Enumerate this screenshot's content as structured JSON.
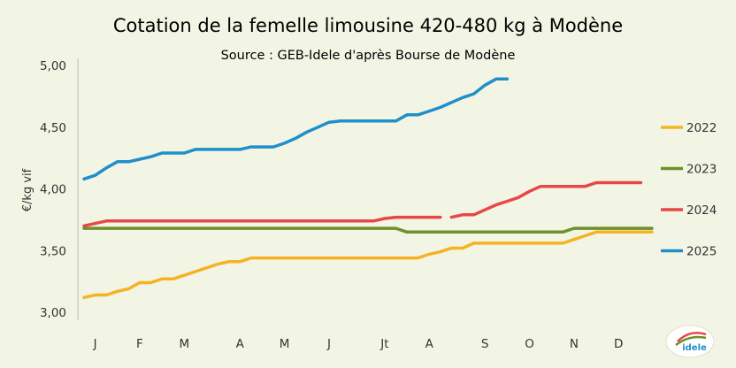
{
  "chart_data": {
    "type": "line",
    "title": "Cotation de la femelle limousine 420-480 kg à Modène",
    "subtitle": "Source : GEB-Idele d'après Bourse de Modène",
    "xlabel": "",
    "ylabel": "€/kg vif",
    "ylim": [
      3.0,
      5.0
    ],
    "yticks": [
      "3,00",
      "3,50",
      "4,00",
      "4,50",
      "5,00"
    ],
    "xlim": [
      1,
      52
    ],
    "month_labels": [
      "J",
      "F",
      "M",
      "A",
      "M",
      "J",
      "Jt",
      "A",
      "S",
      "O",
      "N",
      "D"
    ],
    "month_positions": [
      2,
      6,
      10,
      15,
      19,
      23,
      28,
      32,
      37,
      41,
      45,
      49
    ],
    "grid": false,
    "legend_position": "right",
    "series": [
      {
        "name": "2022",
        "color": "#f5b324",
        "points": [
          [
            1,
            3.12
          ],
          [
            2,
            3.14
          ],
          [
            3,
            3.14
          ],
          [
            4,
            3.17
          ],
          [
            5,
            3.19
          ],
          [
            6,
            3.24
          ],
          [
            7,
            3.24
          ],
          [
            8,
            3.27
          ],
          [
            9,
            3.27
          ],
          [
            10,
            3.3
          ],
          [
            11,
            3.33
          ],
          [
            12,
            3.36
          ],
          [
            13,
            3.39
          ],
          [
            14,
            3.41
          ],
          [
            15,
            3.41
          ],
          [
            16,
            3.44
          ],
          [
            17,
            3.44
          ],
          [
            18,
            3.44
          ],
          [
            19,
            3.44
          ],
          [
            20,
            3.44
          ],
          [
            21,
            3.44
          ],
          [
            22,
            3.44
          ],
          [
            23,
            3.44
          ],
          [
            24,
            3.44
          ],
          [
            25,
            3.44
          ],
          [
            26,
            3.44
          ],
          [
            27,
            3.44
          ],
          [
            28,
            3.44
          ],
          [
            29,
            3.44
          ],
          [
            30,
            3.44
          ],
          [
            31,
            3.44
          ],
          [
            32,
            3.47
          ],
          [
            33,
            3.49
          ],
          [
            34,
            3.52
          ],
          [
            35,
            3.52
          ],
          [
            36,
            3.56
          ],
          [
            37,
            3.56
          ],
          [
            38,
            3.56
          ],
          [
            39,
            3.56
          ],
          [
            40,
            3.56
          ],
          [
            41,
            3.56
          ],
          [
            42,
            3.56
          ],
          [
            43,
            3.56
          ],
          [
            44,
            3.56
          ],
          [
            45,
            3.59
          ],
          [
            46,
            3.62
          ],
          [
            47,
            3.65
          ],
          [
            48,
            3.65
          ],
          [
            49,
            3.65
          ],
          [
            50,
            3.65
          ],
          [
            51,
            3.65
          ],
          [
            52,
            3.65
          ]
        ]
      },
      {
        "name": "2023",
        "color": "#6f8f2a",
        "points": [
          [
            1,
            3.68
          ],
          [
            5,
            3.68
          ],
          [
            10,
            3.68
          ],
          [
            15,
            3.68
          ],
          [
            20,
            3.68
          ],
          [
            25,
            3.68
          ],
          [
            28,
            3.68
          ],
          [
            29,
            3.68
          ],
          [
            30,
            3.65
          ],
          [
            31,
            3.65
          ],
          [
            35,
            3.65
          ],
          [
            40,
            3.65
          ],
          [
            43,
            3.65
          ],
          [
            44,
            3.65
          ],
          [
            45,
            3.68
          ],
          [
            48,
            3.68
          ],
          [
            52,
            3.68
          ]
        ]
      },
      {
        "name": "2024",
        "color": "#e8474a",
        "segments": [
          [
            [
              1,
              3.7
            ],
            [
              2,
              3.72
            ],
            [
              3,
              3.74
            ],
            [
              5,
              3.74
            ],
            [
              10,
              3.74
            ],
            [
              15,
              3.74
            ],
            [
              20,
              3.74
            ],
            [
              25,
              3.74
            ],
            [
              27,
              3.74
            ],
            [
              28,
              3.76
            ],
            [
              29,
              3.77
            ],
            [
              32,
              3.77
            ],
            [
              33,
              3.77
            ]
          ],
          [
            [
              34,
              3.77
            ],
            [
              35,
              3.79
            ],
            [
              36,
              3.79
            ],
            [
              37,
              3.83
            ],
            [
              38,
              3.87
            ],
            [
              39,
              3.9
            ],
            [
              40,
              3.93
            ],
            [
              41,
              3.98
            ],
            [
              42,
              4.02
            ],
            [
              43,
              4.02
            ],
            [
              44,
              4.02
            ],
            [
              45,
              4.02
            ],
            [
              46,
              4.02
            ],
            [
              47,
              4.05
            ],
            [
              48,
              4.05
            ],
            [
              49,
              4.05
            ],
            [
              50,
              4.05
            ],
            [
              51,
              4.05
            ]
          ]
        ]
      },
      {
        "name": "2025",
        "color": "#1f8fcb",
        "points": [
          [
            1,
            4.08
          ],
          [
            2,
            4.11
          ],
          [
            3,
            4.17
          ],
          [
            4,
            4.22
          ],
          [
            5,
            4.22
          ],
          [
            6,
            4.24
          ],
          [
            7,
            4.26
          ],
          [
            8,
            4.29
          ],
          [
            9,
            4.29
          ],
          [
            10,
            4.29
          ],
          [
            11,
            4.32
          ],
          [
            12,
            4.32
          ],
          [
            13,
            4.32
          ],
          [
            14,
            4.32
          ],
          [
            15,
            4.32
          ],
          [
            16,
            4.34
          ],
          [
            17,
            4.34
          ],
          [
            18,
            4.34
          ],
          [
            19,
            4.37
          ],
          [
            20,
            4.41
          ],
          [
            21,
            4.46
          ],
          [
            22,
            4.5
          ],
          [
            23,
            4.54
          ],
          [
            24,
            4.55
          ],
          [
            25,
            4.55
          ],
          [
            26,
            4.55
          ],
          [
            27,
            4.55
          ],
          [
            28,
            4.55
          ],
          [
            29,
            4.55
          ],
          [
            30,
            4.6
          ],
          [
            31,
            4.6
          ],
          [
            32,
            4.63
          ],
          [
            33,
            4.66
          ],
          [
            34,
            4.7
          ],
          [
            35,
            4.74
          ],
          [
            36,
            4.77
          ],
          [
            37,
            4.84
          ],
          [
            38,
            4.89
          ],
          [
            39,
            4.89
          ]
        ]
      }
    ]
  },
  "logo": {
    "text": "idele",
    "colors": [
      "#e8474a",
      "#6f8f2a",
      "#1f8fcb"
    ]
  }
}
